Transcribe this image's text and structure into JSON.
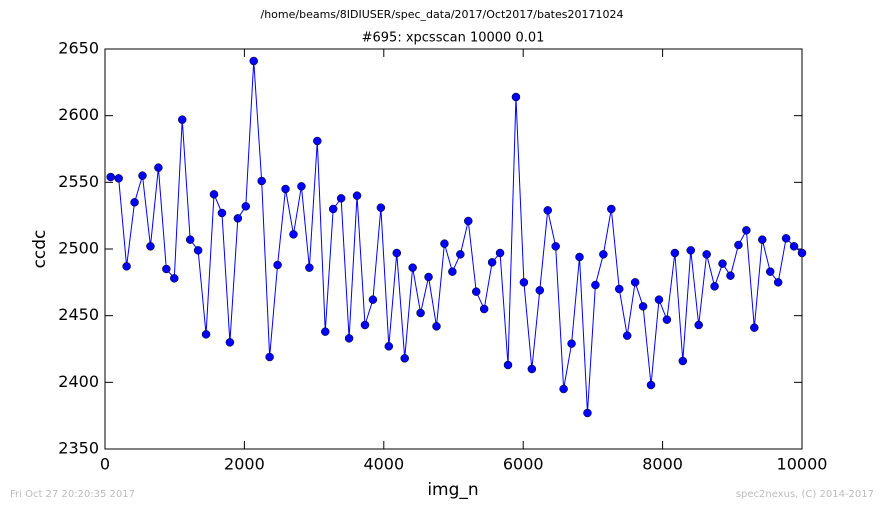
{
  "chart_data": {
    "type": "line",
    "suptitle": "/home/beams/8IDIUSER/spec_data/2017/Oct2017/bates20171024",
    "title": "#695: xpcsscan 10000 0.01",
    "xlabel": "img_n",
    "ylabel": "ccdc",
    "timestamp": "Fri Oct 27 20:20:35 2017",
    "credit": "spec2nexus, (C) 2014-2017",
    "color": "#0000ff",
    "marker": "circle",
    "xlim": [
      0,
      10000
    ],
    "xticks": [
      0,
      2000,
      4000,
      6000,
      8000,
      10000
    ],
    "ylim": [
      2350,
      2650
    ],
    "yticks": [
      2350,
      2400,
      2450,
      2500,
      2550,
      2600,
      2650
    ],
    "x": [
      82,
      196,
      310,
      424,
      538,
      652,
      766,
      880,
      994,
      1108,
      1222,
      1336,
      1450,
      1564,
      1678,
      1792,
      1906,
      2020,
      2134,
      2248,
      2362,
      2476,
      2590,
      2704,
      2818,
      2932,
      3046,
      3160,
      3274,
      3388,
      3502,
      3616,
      3730,
      3844,
      3958,
      4072,
      4186,
      4300,
      4414,
      4528,
      4642,
      4756,
      4870,
      4984,
      5098,
      5212,
      5326,
      5440,
      5554,
      5668,
      5782,
      5896,
      6010,
      6124,
      6238,
      6352,
      6466,
      6580,
      6694,
      6808,
      6922,
      7036,
      7150,
      7264,
      7378,
      7492,
      7606,
      7720,
      7834,
      7948,
      8062,
      8176,
      8290,
      8404,
      8518,
      8632,
      8746,
      8860,
      8974,
      9088,
      9202,
      9316,
      9430,
      9544,
      9658,
      9772,
      9886,
      10000
    ],
    "values": [
      2554,
      2553,
      2487,
      2535,
      2555,
      2502,
      2561,
      2485,
      2478,
      2597,
      2507,
      2499,
      2436,
      2541,
      2527,
      2430,
      2523,
      2532,
      2641,
      2551,
      2419,
      2488,
      2545,
      2511,
      2547,
      2486,
      2581,
      2438,
      2530,
      2538,
      2433,
      2540,
      2443,
      2462,
      2531,
      2427,
      2497,
      2418,
      2486,
      2452,
      2479,
      2442,
      2504,
      2483,
      2496,
      2521,
      2468,
      2455,
      2490,
      2497,
      2413,
      2614,
      2475,
      2410,
      2469,
      2529,
      2502,
      2395,
      2429,
      2494,
      2377,
      2473,
      2496,
      2530,
      2470,
      2435,
      2475,
      2457,
      2398,
      2462,
      2447,
      2497,
      2416,
      2499,
      2443,
      2496,
      2472,
      2489,
      2480,
      2503,
      2514,
      2441,
      2507,
      2483,
      2475,
      2508,
      2502,
      2497
    ]
  }
}
